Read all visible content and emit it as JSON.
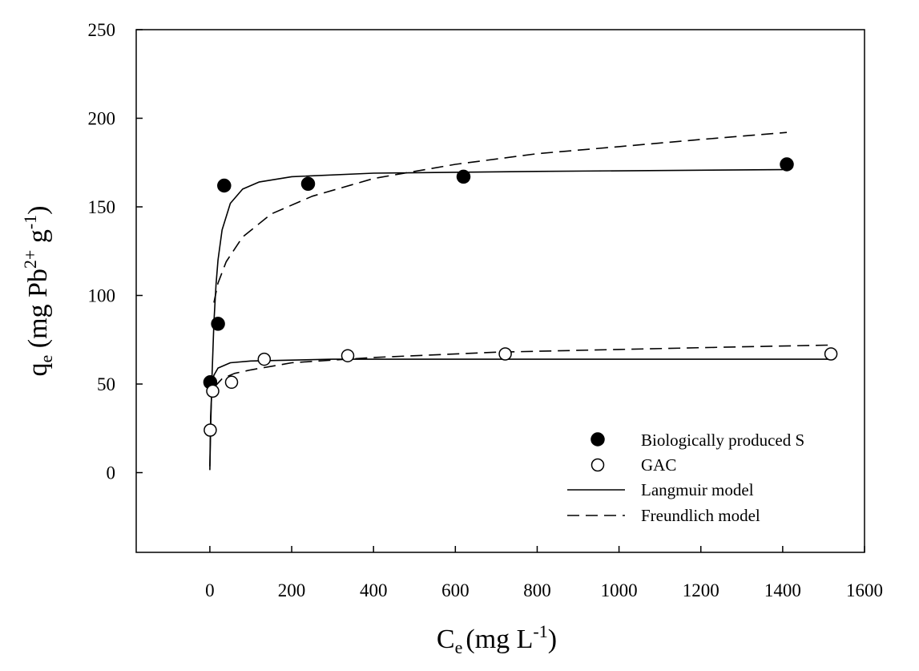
{
  "chart_data": {
    "type": "scatter",
    "xlabel": {
      "base": "C",
      "sub": "e",
      "rest1": "(mg L",
      "sup": "-1",
      "rest2": ")"
    },
    "ylabel": {
      "base": "q",
      "sub": "e",
      "rest1": " (mg Pb",
      "sup1": "2+",
      "mid": " g",
      "sup2": "-1",
      "rest2": ")"
    },
    "xlim": [
      -180,
      1600
    ],
    "ylim": [
      -45,
      250
    ],
    "x_ticks": [
      0,
      200,
      400,
      600,
      800,
      1000,
      1200,
      1400,
      1600
    ],
    "y_ticks": [
      0,
      50,
      100,
      150,
      200,
      250
    ],
    "grid": false,
    "legend_position": "bottom-right",
    "series": [
      {
        "name": "Biologically produced S",
        "kind": "markers",
        "marker": "filled-circle",
        "x": [
          1,
          20,
          35,
          240,
          620,
          1410
        ],
        "y": [
          51,
          84,
          162,
          163,
          167,
          174
        ]
      },
      {
        "name": "GAC",
        "kind": "markers",
        "marker": "open-circle",
        "x": [
          1,
          7,
          53,
          133,
          337,
          722,
          1518
        ],
        "y": [
          24,
          46,
          51,
          64,
          66,
          67,
          67
        ]
      },
      {
        "name": "Langmuir model",
        "kind": "line",
        "dash": "solid",
        "curves": [
          {
            "x": [
              0,
              2,
              5,
              10,
              15,
              20,
              30,
              50,
              80,
              120,
              200,
              400,
              800,
              1400
            ],
            "y": [
              1.4,
              25,
              53,
              85,
              106,
              120,
              137,
              152,
              160,
              164,
              167,
              169,
              170,
              171
            ]
          },
          {
            "x": [
              0,
              2,
              5,
              10,
              20,
              50,
              100,
              300,
              700,
              1520
            ],
            "y": [
              3.6,
              32,
              48,
              55,
              59,
              62,
              63,
              64,
              64,
              64
            ]
          }
        ]
      },
      {
        "name": "Freundlich model",
        "kind": "line",
        "dash": "dashed",
        "curves": [
          {
            "x": [
              10,
              20,
              40,
              80,
              150,
              250,
              400,
              600,
              800,
              1000,
              1200,
              1410
            ],
            "y": [
              96,
              107,
              119,
              133,
              146,
              156,
              166,
              174,
              180,
              184,
              188,
              192
            ]
          },
          {
            "x": [
              10,
              30,
              60,
              100,
              200,
              400,
              700,
              1000,
              1300,
              1520
            ],
            "y": [
              48,
              53,
              56,
              58,
              62,
              65,
              68,
              69.5,
              71,
              72
            ]
          }
        ]
      }
    ]
  }
}
